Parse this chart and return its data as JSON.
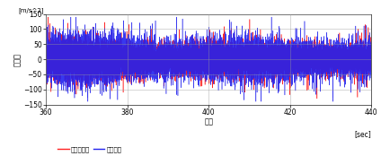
{
  "x_start": 360,
  "x_end": 440,
  "y_min": -150,
  "y_max": 150,
  "x_ticks": [
    360,
    380,
    400,
    420,
    440
  ],
  "y_ticks": [
    -150,
    -100,
    -50,
    0,
    50,
    100,
    150
  ],
  "xlabel": "時間",
  "xlabel_sec": "[sec]",
  "ylabel": "加速度",
  "ylabel_unit": "[m/s^2]",
  "legend_red": "実走行波形",
  "legend_blue": "再現波形",
  "red_color": "#FF2222",
  "blue_color": "#2222EE",
  "bg_color": "#FFFFFF",
  "grid_color": "#999999",
  "seed": 42,
  "n_points": 16000,
  "base_amp": 28,
  "spike_prob": 0.008,
  "spike_amp": 90
}
